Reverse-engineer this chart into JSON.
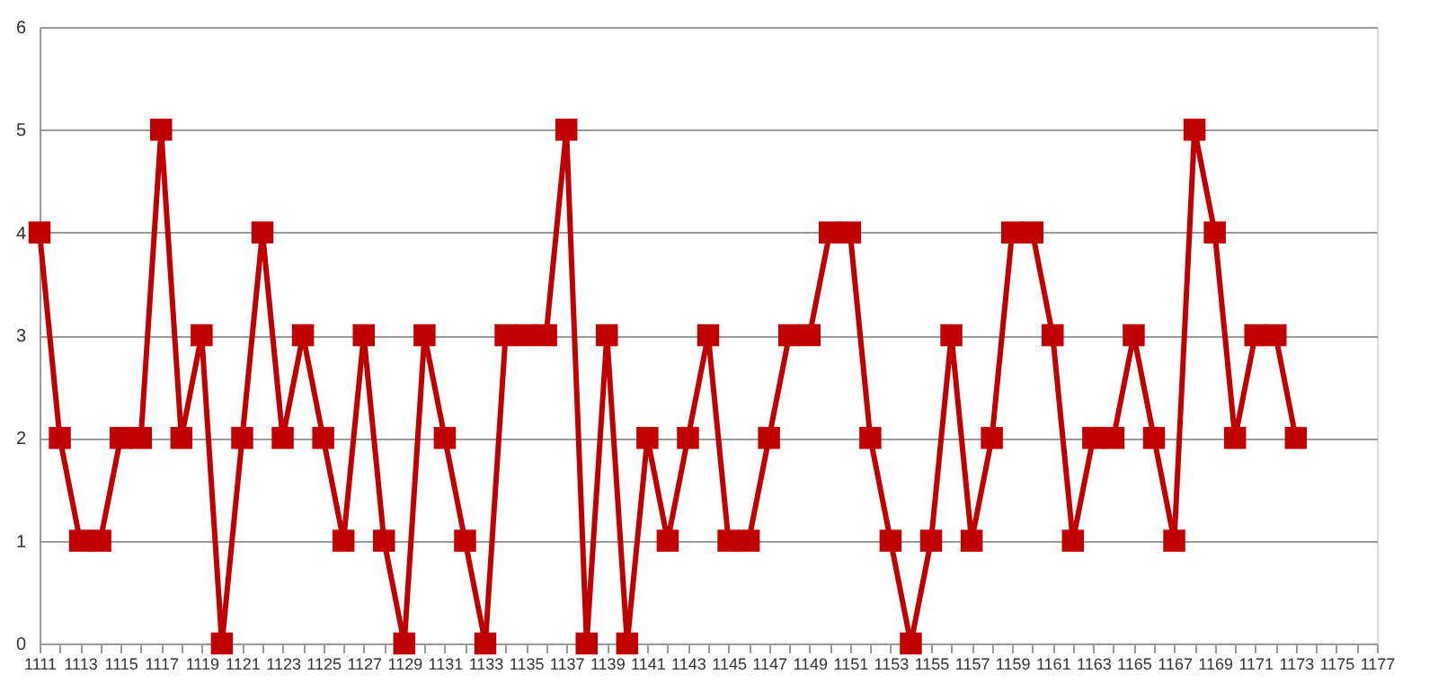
{
  "chart_data": {
    "type": "line",
    "marker": "square",
    "line_style": "solid",
    "grid": "y",
    "legend": false,
    "x": [
      1111,
      1112,
      1113,
      1114,
      1115,
      1116,
      1117,
      1118,
      1119,
      1120,
      1121,
      1122,
      1123,
      1124,
      1125,
      1126,
      1127,
      1128,
      1129,
      1130,
      1131,
      1132,
      1133,
      1134,
      1135,
      1136,
      1137,
      1138,
      1139,
      1140,
      1141,
      1142,
      1143,
      1144,
      1145,
      1146,
      1147,
      1148,
      1149,
      1150,
      1151,
      1152,
      1153,
      1154,
      1155,
      1156,
      1157,
      1158,
      1159,
      1160,
      1161,
      1162,
      1163,
      1164,
      1165,
      1166,
      1167,
      1168,
      1169,
      1170,
      1171,
      1172,
      1173
    ],
    "series": [
      {
        "color": "#c00000",
        "values": [
          4,
          2,
          1,
          1,
          2,
          2,
          5,
          2,
          3,
          0,
          2,
          4,
          2,
          3,
          2,
          1,
          3,
          1,
          0,
          3,
          2,
          1,
          0,
          3,
          3,
          3,
          5,
          0,
          3,
          0,
          2,
          1,
          2,
          3,
          1,
          1,
          2,
          3,
          3,
          4,
          4,
          2,
          1,
          0,
          1,
          3,
          1,
          2,
          4,
          4,
          3,
          1,
          2,
          2,
          3,
          2,
          1,
          5,
          4,
          2,
          3,
          3,
          2
        ]
      }
    ],
    "xlim": [
      1111,
      1177
    ],
    "xticks": [
      1111,
      {
        "value": 1112,
        "label": null
      },
      1113,
      {
        "value": 1114,
        "label": null
      },
      1115,
      {
        "value": 1116,
        "label": null
      },
      1117,
      {
        "value": 1118,
        "label": null
      },
      1119,
      {
        "value": 1120,
        "label": null
      },
      1121,
      {
        "value": 1122,
        "label": null
      },
      1123,
      {
        "value": 1124,
        "label": null
      },
      1125,
      {
        "value": 1126,
        "label": null
      },
      1127,
      {
        "value": 1128,
        "label": null
      },
      1129,
      {
        "value": 1130,
        "label": null
      },
      1131,
      {
        "value": 1132,
        "label": null
      },
      1133,
      {
        "value": 1134,
        "label": null
      },
      1135,
      {
        "value": 1136,
        "label": null
      },
      1137,
      {
        "value": 1138,
        "label": null
      },
      1139,
      {
        "value": 1140,
        "label": null
      },
      1141,
      {
        "value": 1142,
        "label": null
      },
      1143,
      {
        "value": 1144,
        "label": null
      },
      1145,
      {
        "value": 1146,
        "label": null
      },
      1147,
      {
        "value": 1148,
        "label": null
      },
      1149,
      {
        "value": 1150,
        "label": null
      },
      1151,
      {
        "value": 1152,
        "label": null
      },
      1153,
      {
        "value": 1154,
        "label": null
      },
      1155,
      {
        "value": 1156,
        "label": null
      },
      1157,
      {
        "value": 1158,
        "label": null
      },
      1159,
      {
        "value": 1160,
        "label": null
      },
      1161,
      {
        "value": 1162,
        "label": null
      },
      1163,
      {
        "value": 1164,
        "label": null
      },
      1165,
      {
        "value": 1166,
        "label": null
      },
      1167,
      {
        "value": 1168,
        "label": null
      },
      1169,
      {
        "value": 1170,
        "label": null
      },
      1171,
      {
        "value": 1172,
        "label": null
      },
      1173,
      {
        "value": 1174,
        "label": null
      },
      1175,
      {
        "value": 1176,
        "label": null
      },
      1177
    ],
    "ylim": [
      0,
      6
    ],
    "yticks": [
      0,
      1,
      2,
      3,
      4,
      5,
      6
    ]
  }
}
